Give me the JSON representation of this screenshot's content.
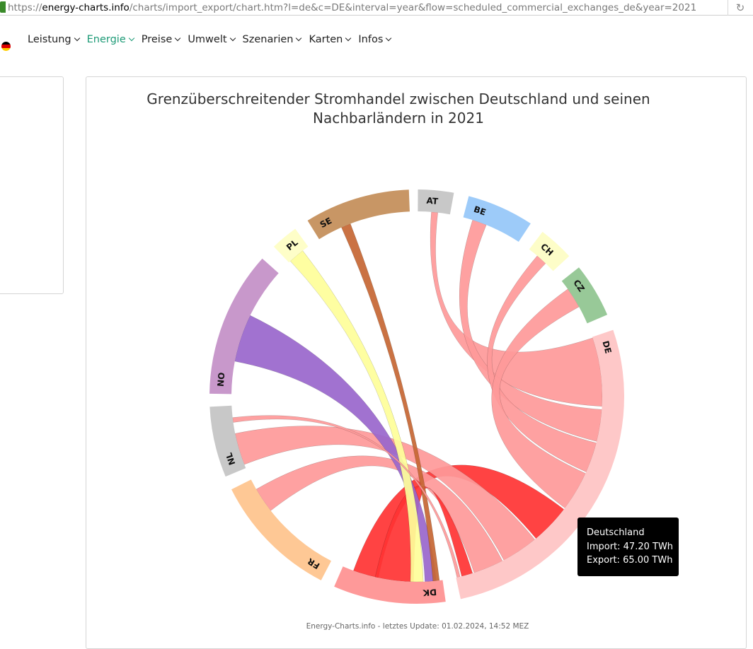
{
  "browser": {
    "url_scheme": "https://",
    "url_host": "energy-charts.info",
    "url_path": "/charts/import_export/chart.htm?l=de&c=DE&interval=year&flow=scheduled_commercial_exchanges_de&year=2021"
  },
  "nav": {
    "items": [
      {
        "label": "Leistung",
        "active": false
      },
      {
        "label": "Energie",
        "active": true
      },
      {
        "label": "Preise",
        "active": false
      },
      {
        "label": "Umwelt",
        "active": false
      },
      {
        "label": "Szenarien",
        "active": false
      },
      {
        "label": "Karten",
        "active": false
      },
      {
        "label": "Infos",
        "active": false
      }
    ],
    "active_color": "#1c9a76"
  },
  "chart_data": {
    "type": "chord",
    "title": "Grenzüberschreitender Stromhandel zwischen Deutschland und seinen Nachbarländern in 2021",
    "credits": "Energy-Charts.info - letztes Update: 01.02.2024, 14:52 MEZ",
    "nodes": [
      {
        "name": "AT",
        "color": "#c8c8c8"
      },
      {
        "name": "BE",
        "color": "#9dcbf9"
      },
      {
        "name": "CH",
        "color": "#fdfdc8"
      },
      {
        "name": "CZ",
        "color": "#98c998"
      },
      {
        "name": "DE",
        "color": "#fec8c8"
      },
      {
        "name": "DK",
        "color": "#fe9999"
      },
      {
        "name": "FR",
        "color": "#fec895"
      },
      {
        "name": "NL",
        "color": "#c8c8c8"
      },
      {
        "name": "NO",
        "color": "#c898cb"
      },
      {
        "name": "PL",
        "color": "#fefec8"
      },
      {
        "name": "SE",
        "color": "#c89665"
      }
    ],
    "tooltip": {
      "country": "Deutschland",
      "import_label": "Import",
      "import_value": 47.2,
      "export_label": "Export",
      "export_value": 65.0,
      "unit": "TWh",
      "import_text": "Import: 47.20 TWh",
      "export_text": "Export: 65.00 TWh"
    }
  }
}
